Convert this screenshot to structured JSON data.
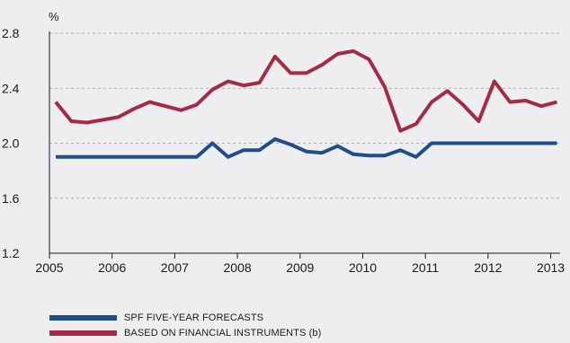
{
  "chart_data": {
    "type": "line",
    "ylabel": "%",
    "xlabel": "",
    "title": "",
    "ylim": [
      1.2,
      2.8
    ],
    "yticks": [
      1.2,
      1.6,
      2.0,
      2.4,
      2.8
    ],
    "ytick_labels": [
      "1.2",
      "1.6",
      "2.0",
      "2.4",
      "2.8"
    ],
    "xlim": [
      2005,
      2013.15
    ],
    "xticks": [
      2005,
      2006,
      2007,
      2008,
      2009,
      2010,
      2011,
      2012,
      2013
    ],
    "xtick_labels": [
      "2005",
      "2006",
      "2007",
      "2008",
      "2009",
      "2010",
      "2011",
      "2012",
      "2013"
    ],
    "grid": "horizontal dashed",
    "legend_position": "bottom-left",
    "series": [
      {
        "name": "SPF FIVE-YEAR FORECASTS",
        "color": "#1f4e8c",
        "x": [
          2005.1,
          2005.35,
          2005.6,
          2005.85,
          2006.1,
          2006.35,
          2006.6,
          2006.85,
          2007.1,
          2007.35,
          2007.6,
          2007.85,
          2008.1,
          2008.35,
          2008.6,
          2008.85,
          2009.1,
          2009.35,
          2009.6,
          2009.85,
          2010.1,
          2010.35,
          2010.6,
          2010.85,
          2011.1,
          2011.35,
          2011.6,
          2011.85,
          2012.1,
          2012.35,
          2012.6,
          2012.85,
          2013.1
        ],
        "values": [
          1.9,
          1.9,
          1.9,
          1.9,
          1.9,
          1.9,
          1.9,
          1.9,
          1.9,
          1.9,
          2.0,
          1.9,
          1.95,
          1.95,
          2.03,
          1.99,
          1.94,
          1.93,
          1.98,
          1.92,
          1.91,
          1.91,
          1.95,
          1.9,
          2.0,
          2.0,
          2.0,
          2.0,
          2.0,
          2.0,
          2.0,
          2.0,
          2.0
        ]
      },
      {
        "name": "BASED ON FINANCIAL INSTRUMENTS (b)",
        "color": "#a32b45",
        "x": [
          2005.1,
          2005.35,
          2005.6,
          2005.85,
          2006.1,
          2006.35,
          2006.6,
          2006.85,
          2007.1,
          2007.35,
          2007.6,
          2007.85,
          2008.1,
          2008.35,
          2008.6,
          2008.85,
          2009.1,
          2009.35,
          2009.6,
          2009.85,
          2010.1,
          2010.35,
          2010.6,
          2010.85,
          2011.1,
          2011.35,
          2011.6,
          2011.85,
          2012.1,
          2012.35,
          2012.6,
          2012.85,
          2013.1
        ],
        "values": [
          2.3,
          2.16,
          2.15,
          2.17,
          2.19,
          2.25,
          2.3,
          2.27,
          2.24,
          2.28,
          2.39,
          2.45,
          2.42,
          2.44,
          2.63,
          2.51,
          2.51,
          2.57,
          2.65,
          2.67,
          2.61,
          2.41,
          2.09,
          2.14,
          2.3,
          2.38,
          2.28,
          2.16,
          2.45,
          2.3,
          2.31,
          2.27,
          2.3
        ]
      }
    ]
  }
}
